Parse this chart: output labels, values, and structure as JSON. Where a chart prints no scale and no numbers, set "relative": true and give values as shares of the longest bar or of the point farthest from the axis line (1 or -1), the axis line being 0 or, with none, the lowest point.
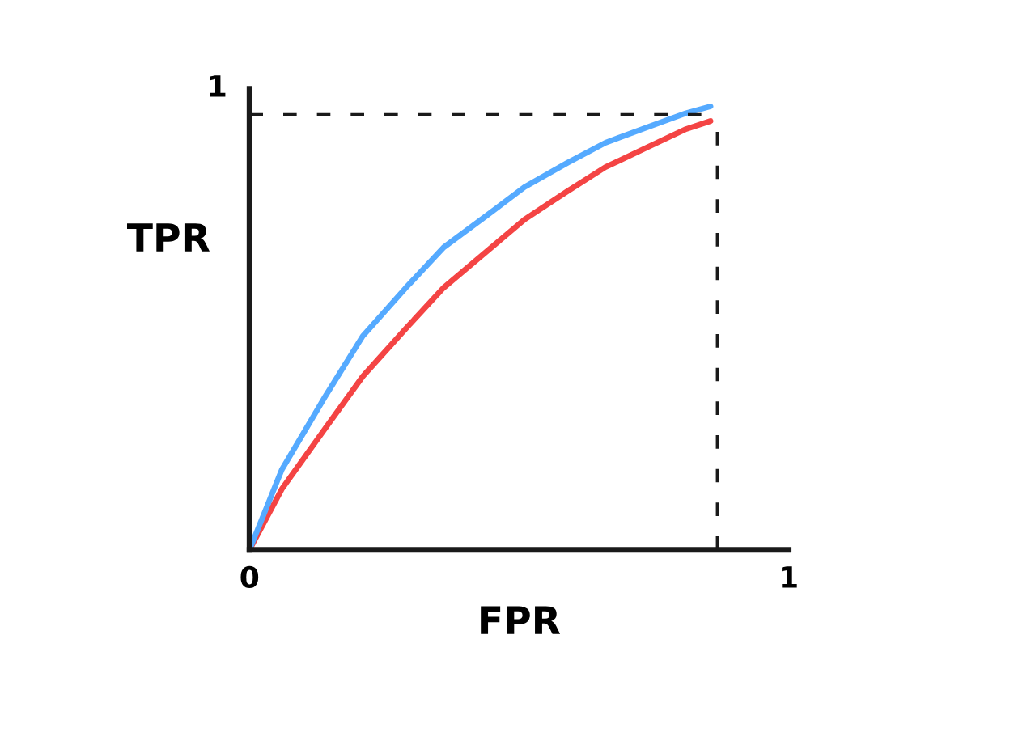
{
  "chart_data": {
    "type": "line",
    "xlabel": "FPR",
    "ylabel": "TPR",
    "relative": true,
    "x": [
      0,
      0.06,
      0.14,
      0.21,
      0.29,
      0.36,
      0.44,
      0.51,
      0.59,
      0.66,
      0.74,
      0.81,
      0.855
    ],
    "series": [
      {
        "color": "#f44444",
        "values": [
          0,
          0.137,
          0.273,
          0.391,
          0.499,
          0.591,
          0.673,
          0.745,
          0.809,
          0.863,
          0.909,
          0.949,
          0.967
        ]
      },
      {
        "color": "#55aaff",
        "values": [
          0,
          0.181,
          0.345,
          0.482,
          0.591,
          0.682,
          0.754,
          0.818,
          0.873,
          0.918,
          0.954,
          0.985,
          1
        ]
      }
    ],
    "xlim": [
      0,
      1
    ],
    "xticks": [
      0,
      1
    ],
    "annotations": [
      "1"
    ],
    "ref_lines": [
      {
        "axis": "y",
        "value": 0.981,
        "color": "#1a1a1a",
        "line_style": "dashed"
      },
      {
        "axis": "x",
        "value": 0.868,
        "color": "#1a1a1a",
        "line_style": "dashed"
      }
    ],
    "grid": false,
    "legend": false,
    "marker": "none",
    "line_style": "solid"
  }
}
